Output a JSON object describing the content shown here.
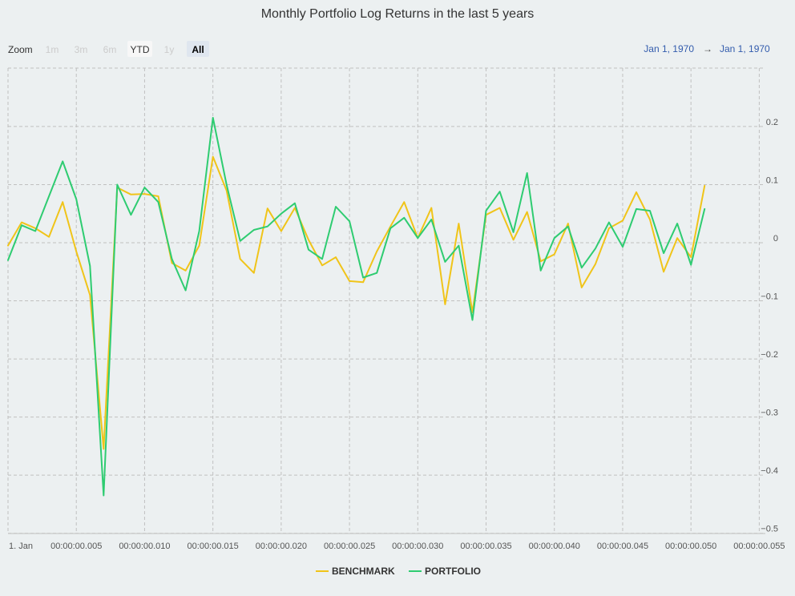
{
  "chart_data": {
    "type": "line",
    "title": "Monthly Portfolio Log Returns in the last 5 years",
    "xlabel": "",
    "ylabel": "",
    "x_tick_labels": [
      "1. Jan",
      "00:00:00.005",
      "00:00:00.010",
      "00:00:00.015",
      "00:00:00.020",
      "00:00:00.025",
      "00:00:00.030",
      "00:00:00.035",
      "00:00:00.040",
      "00:00:00.045",
      "00:00:00.050",
      "00:00:00.055"
    ],
    "x_ticks": [
      0,
      5,
      10,
      15,
      20,
      25,
      30,
      35,
      40,
      45,
      50,
      55
    ],
    "xlim": [
      0,
      57.5
    ],
    "ylim": [
      -0.5,
      0.3
    ],
    "y_ticks": [
      -0.5,
      -0.4,
      -0.3,
      -0.2,
      -0.1,
      0,
      0.1,
      0.2
    ],
    "y_tick_labels": [
      "−0.5",
      "−0.4",
      "−0.3",
      "−0.2",
      "−0.1",
      "0",
      "0.1",
      "0.2"
    ],
    "grid": true,
    "legend": "bottom-center",
    "series": [
      {
        "name": "BENCHMARK",
        "color": "#f0c419",
        "x": [
          0,
          1,
          2,
          3,
          4,
          5,
          6,
          7,
          8,
          9,
          10,
          11,
          12,
          13,
          14,
          15,
          16,
          17,
          18,
          19,
          20,
          21,
          22,
          23,
          24,
          25,
          26,
          27,
          28,
          29,
          30,
          31,
          32,
          33,
          34,
          35,
          36,
          37,
          38,
          39,
          40,
          41,
          42,
          43,
          44,
          45,
          46,
          47,
          48,
          49,
          50,
          51
        ],
        "values": [
          -0.005,
          0.035,
          0.025,
          0.01,
          0.07,
          -0.015,
          -0.09,
          -0.355,
          0.095,
          0.083,
          0.084,
          0.08,
          -0.035,
          -0.048,
          -0.005,
          0.148,
          0.09,
          -0.028,
          -0.052,
          0.059,
          0.02,
          0.06,
          0.005,
          -0.039,
          -0.025,
          -0.066,
          -0.068,
          -0.015,
          0.028,
          0.07,
          0.008,
          0.06,
          -0.106,
          0.033,
          -0.12,
          0.048,
          0.06,
          0.005,
          0.053,
          -0.032,
          -0.02,
          0.033,
          -0.077,
          -0.037,
          0.025,
          0.038,
          0.087,
          0.04,
          -0.05,
          0.008,
          -0.025,
          0.098
        ]
      },
      {
        "name": "PORTFOLIO",
        "color": "#2ecc71",
        "x": [
          0,
          1,
          2,
          3,
          4,
          5,
          6,
          7,
          8,
          9,
          10,
          11,
          12,
          13,
          14,
          15,
          16,
          17,
          18,
          19,
          20,
          21,
          22,
          23,
          24,
          25,
          26,
          27,
          28,
          29,
          30,
          31,
          32,
          33,
          34,
          35,
          36,
          37,
          38,
          39,
          40,
          41,
          42,
          43,
          44,
          45,
          46,
          47,
          48,
          49,
          50,
          51
        ],
        "values": [
          -0.03,
          0.03,
          0.02,
          0.08,
          0.14,
          0.075,
          -0.04,
          -0.435,
          0.1,
          0.048,
          0.095,
          0.07,
          -0.028,
          -0.082,
          0.02,
          0.215,
          0.1,
          0.003,
          0.022,
          0.028,
          0.05,
          0.068,
          -0.012,
          -0.028,
          0.062,
          0.037,
          -0.06,
          -0.052,
          0.025,
          0.043,
          0.008,
          0.04,
          -0.033,
          -0.005,
          -0.133,
          0.055,
          0.088,
          0.018,
          0.12,
          -0.048,
          0.008,
          0.028,
          -0.043,
          -0.01,
          0.035,
          -0.007,
          0.058,
          0.055,
          -0.018,
          0.033,
          -0.038,
          0.058
        ]
      }
    ]
  },
  "zoom": {
    "label": "Zoom",
    "buttons": [
      {
        "label": "1m",
        "state": "disabled"
      },
      {
        "label": "3m",
        "state": "disabled"
      },
      {
        "label": "6m",
        "state": "disabled"
      },
      {
        "label": "YTD",
        "state": "enabled"
      },
      {
        "label": "1y",
        "state": "disabled"
      },
      {
        "label": "All",
        "state": "active"
      }
    ]
  },
  "range": {
    "from": "Jan 1, 1970",
    "arrow": "→",
    "to": "Jan 1, 1970"
  }
}
